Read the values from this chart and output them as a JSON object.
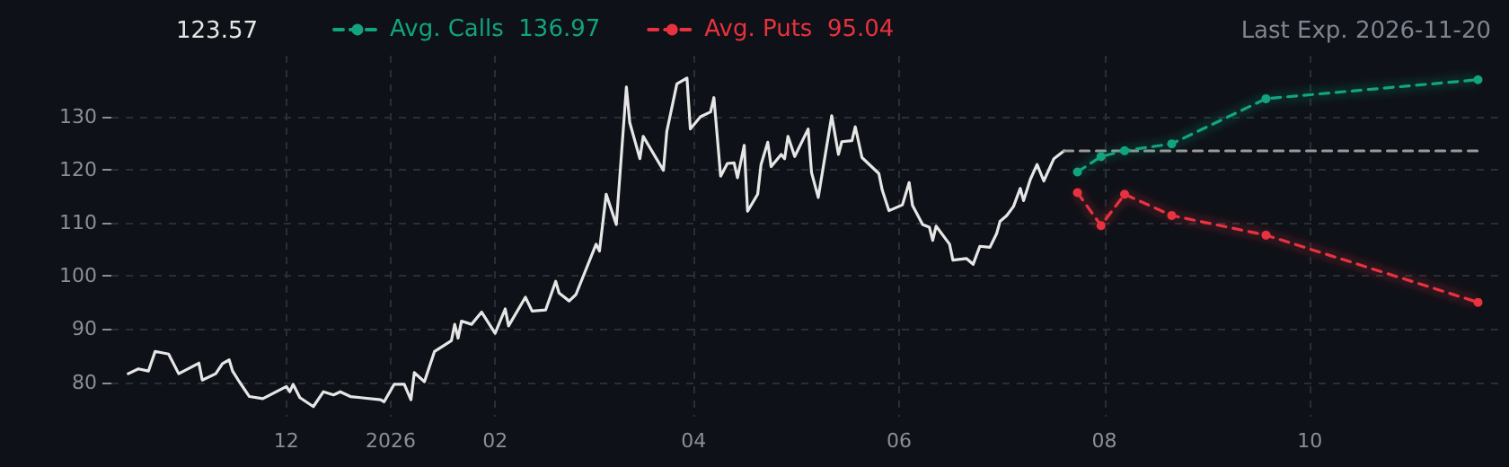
{
  "chart_data": {
    "type": "line",
    "annotations": [
      "123.57",
      "Last Exp. 2026-11-20"
    ],
    "xlim": [
      "2025-10-10",
      "2026-11-26"
    ],
    "xticks": [
      {
        "value": "2025-12-01",
        "label": "12"
      },
      {
        "value": "2026-01-01",
        "label": "2026"
      },
      {
        "value": "2026-02-01",
        "label": "02"
      },
      {
        "value": "2026-04-01",
        "label": "04"
      },
      {
        "value": "2026-06-01",
        "label": "06"
      },
      {
        "value": "2026-08-01",
        "label": "08"
      },
      {
        "value": "2026-10-01",
        "label": "10"
      }
    ],
    "ylim": [
      73.5,
      141.5
    ],
    "yticks": [
      80,
      90,
      100,
      110,
      120,
      130
    ],
    "grid": true,
    "legend": "top left",
    "series": [
      {
        "color": "#e6e6e6",
        "marker": "none",
        "line_style": "solid",
        "x": [
          "2025-10-15",
          "2025-10-18",
          "2025-10-21",
          "2025-10-23",
          "2025-10-27",
          "2025-10-30",
          "2025-11-05",
          "2025-11-06",
          "2025-11-10",
          "2025-11-12",
          "2025-11-14",
          "2025-11-15",
          "2025-11-17",
          "2025-11-20",
          "2025-11-24",
          "2025-12-01",
          "2025-12-02",
          "2025-12-03",
          "2025-12-05",
          "2025-12-09",
          "2025-12-12",
          "2025-12-15",
          "2025-12-17",
          "2025-12-20",
          "2025-12-23",
          "2025-12-29",
          "2025-12-30",
          "2026-01-02",
          "2026-01-05",
          "2026-01-07",
          "2026-01-08",
          "2026-01-11",
          "2026-01-14",
          "2026-01-19",
          "2026-01-20",
          "2026-01-21",
          "2026-01-22",
          "2026-01-25",
          "2026-01-28",
          "2026-02-01",
          "2026-02-04",
          "2026-02-05",
          "2026-02-10",
          "2026-02-12",
          "2026-02-16",
          "2026-02-19",
          "2026-02-20",
          "2026-02-23",
          "2026-02-25",
          "2026-03-03",
          "2026-03-04",
          "2026-03-06",
          "2026-03-09",
          "2026-03-12",
          "2026-03-13",
          "2026-03-16",
          "2026-03-17",
          "2026-03-23",
          "2026-03-24",
          "2026-03-27",
          "2026-03-30",
          "2026-03-31",
          "2026-04-03",
          "2026-04-06",
          "2026-04-07",
          "2026-04-09",
          "2026-04-11",
          "2026-04-13",
          "2026-04-14",
          "2026-04-16",
          "2026-04-17",
          "2026-04-20",
          "2026-04-21",
          "2026-04-23",
          "2026-04-24",
          "2026-04-27",
          "2026-04-28",
          "2026-04-29",
          "2026-05-01",
          "2026-05-05",
          "2026-05-06",
          "2026-05-08",
          "2026-05-12",
          "2026-05-14",
          "2026-05-15",
          "2026-05-18",
          "2026-05-19",
          "2026-05-21",
          "2026-05-26",
          "2026-05-27",
          "2026-05-29",
          "2026-06-02",
          "2026-06-04",
          "2026-06-05",
          "2026-06-08",
          "2026-06-10",
          "2026-06-11",
          "2026-06-12",
          "2026-06-16",
          "2026-06-17",
          "2026-06-21",
          "2026-06-23",
          "2026-06-25",
          "2026-06-28",
          "2026-06-30",
          "2026-07-01",
          "2026-07-03",
          "2026-07-05",
          "2026-07-07",
          "2026-07-08",
          "2026-07-10",
          "2026-07-12",
          "2026-07-14",
          "2026-07-17",
          "2026-07-20"
        ],
        "values": [
          81.6,
          82.5,
          82.1,
          85.8,
          85.3,
          81.6,
          83.6,
          80.4,
          81.6,
          83.5,
          84.2,
          82.1,
          80.1,
          77.3,
          76.9,
          79.2,
          78.2,
          79.6,
          77.1,
          75.4,
          78.2,
          77.6,
          78.2,
          77.3,
          77.1,
          76.7,
          76.3,
          79.6,
          79.6,
          76.7,
          81.8,
          80.1,
          85.8,
          87.8,
          90.9,
          88.3,
          91.5,
          90.9,
          93.2,
          89.2,
          93.8,
          90.6,
          96.0,
          93.4,
          93.6,
          99.0,
          96.8,
          95.3,
          96.5,
          106.0,
          104.7,
          115.4,
          109.7,
          135.6,
          128.9,
          122.1,
          126.3,
          119.9,
          127.2,
          136.2,
          137.3,
          127.7,
          130.0,
          130.9,
          133.6,
          118.8,
          121.2,
          121.3,
          118.5,
          124.6,
          112.2,
          115.4,
          121.0,
          125.2,
          120.6,
          122.9,
          122.1,
          126.3,
          122.5,
          127.7,
          119.5,
          114.8,
          130.2,
          122.9,
          125.3,
          125.5,
          128.1,
          122.3,
          119.3,
          116.2,
          112.3,
          113.4,
          117.6,
          113.3,
          109.7,
          109.2,
          106.7,
          109.4,
          106.0,
          103.0,
          103.3,
          102.2,
          105.6,
          105.4,
          108.0,
          110.3,
          111.4,
          113.1,
          116.5,
          114.2,
          118.2,
          121.0,
          117.9,
          122.1,
          123.57
        ]
      },
      {
        "color": "#9a9a9a",
        "marker": "none",
        "line_style": "dashed",
        "x": [
          "2026-07-20",
          "2026-11-20"
        ],
        "values": [
          123.57,
          123.57
        ]
      },
      {
        "name": "Avg. Calls  136.97",
        "color": "#12a37f",
        "marker": "circle",
        "line_style": "dashed",
        "x": [
          "2026-07-24",
          "2026-07-31",
          "2026-08-07",
          "2026-08-21",
          "2026-09-18",
          "2026-11-20"
        ],
        "values": [
          119.6,
          122.5,
          123.6,
          124.9,
          133.4,
          136.97
        ]
      },
      {
        "name": "Avg. Puts  95.04",
        "color": "#e8323f",
        "marker": "circle",
        "line_style": "dashed",
        "x": [
          "2026-07-24",
          "2026-07-31",
          "2026-08-07",
          "2026-08-21",
          "2026-09-18",
          "2026-11-20"
        ],
        "values": [
          115.7,
          109.5,
          115.4,
          111.4,
          107.7,
          95.04
        ]
      }
    ]
  }
}
